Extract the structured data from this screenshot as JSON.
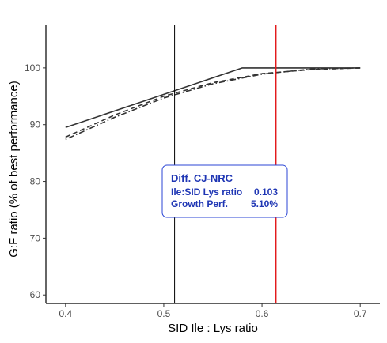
{
  "chart_data": {
    "type": "line",
    "xlabel": "SID Ile : Lys ratio",
    "ylabel": "G:F ratio (% of best performance)",
    "xlim": [
      0.38,
      0.72
    ],
    "ylim": [
      58.5,
      107.5
    ],
    "x_ticks": [
      0.4,
      0.5,
      0.6,
      0.7
    ],
    "x_tick_labels": [
      "0.4",
      "0.5",
      "0.6",
      "0.7"
    ],
    "y_ticks": [
      60,
      70,
      80,
      90,
      100
    ],
    "y_tick_labels": [
      "60",
      "70",
      "80",
      "90",
      "100"
    ],
    "grid": false,
    "legend": "none",
    "series": [
      {
        "style": "solid",
        "color": "#333333",
        "x": [
          0.4,
          0.58,
          0.7
        ],
        "y": [
          89.5,
          100,
          100
        ]
      },
      {
        "style": "dashed",
        "color": "#333333",
        "x": [
          0.4,
          0.45,
          0.5,
          0.55,
          0.6,
          0.65,
          0.7
        ],
        "y": [
          87.8,
          91.7,
          95.0,
          97.4,
          99.0,
          99.7,
          100
        ]
      },
      {
        "style": "dotdash",
        "color": "#333333",
        "x": [
          0.4,
          0.45,
          0.5,
          0.55,
          0.6,
          0.65,
          0.7
        ],
        "y": [
          87.4,
          91.3,
          94.7,
          97.2,
          98.9,
          99.8,
          100
        ]
      }
    ],
    "vlines": [
      {
        "x": 0.511,
        "color": "#000000"
      },
      {
        "x": 0.614,
        "color": "#e31a1c"
      }
    ],
    "annotation": {
      "title": "Diff. CJ-NRC",
      "rows": [
        {
          "label": "Ile:SID Lys ratio",
          "value": "0.103"
        },
        {
          "label": "Growth Perf.",
          "value": "5.10%"
        }
      ],
      "text_color": "#1f36b4",
      "border_color": "#2b46d6"
    }
  }
}
